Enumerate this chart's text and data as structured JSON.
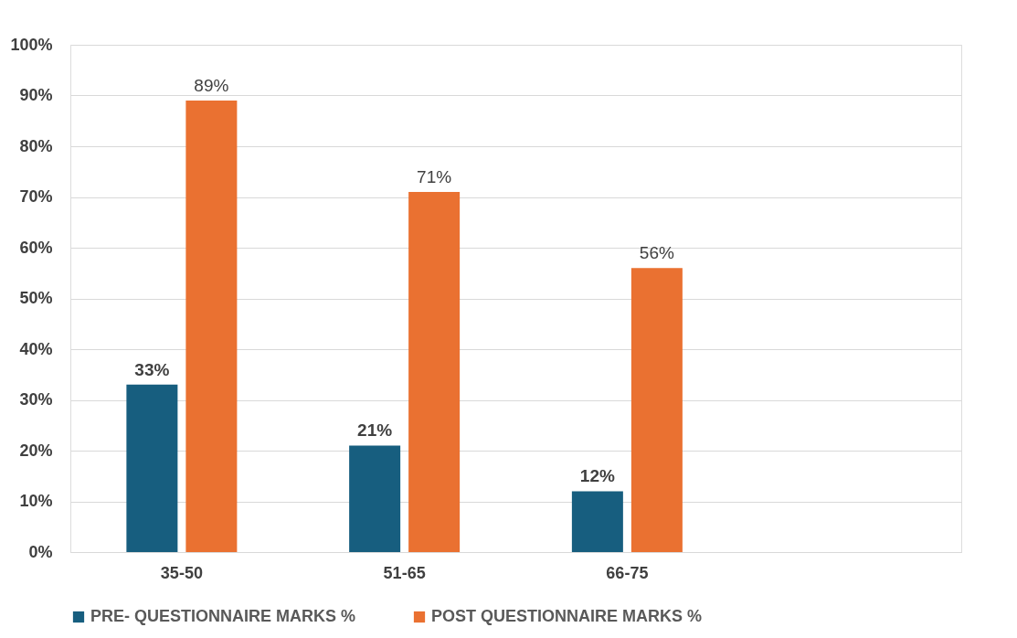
{
  "chart_data": {
    "type": "bar",
    "categories": [
      "35-50",
      "51-65",
      "66-75",
      null
    ],
    "series": [
      {
        "name": "PRE- QUESTIONNAIRE MARKS %",
        "color": "#175e7f",
        "values": [
          33,
          21,
          12,
          null
        ],
        "value_labels": [
          "33%",
          "21%",
          "12%",
          null
        ]
      },
      {
        "name": "POST QUESTIONNAIRE MARKS %",
        "color": "#ea7131",
        "values": [
          89,
          71,
          56,
          null
        ],
        "value_labels": [
          "89%",
          "71%",
          "56%",
          null
        ]
      }
    ],
    "ylim": [
      0,
      100
    ],
    "yticks": [
      {
        "value": 0,
        "label": "0%"
      },
      {
        "value": 10,
        "label": "10%"
      },
      {
        "value": 20,
        "label": "20%"
      },
      {
        "value": 30,
        "label": "30%"
      },
      {
        "value": 40,
        "label": "40%"
      },
      {
        "value": 50,
        "label": "50%"
      },
      {
        "value": 60,
        "label": "60%"
      },
      {
        "value": 70,
        "label": "70%"
      },
      {
        "value": 80,
        "label": "80%"
      },
      {
        "value": 90,
        "label": "90%"
      },
      {
        "value": 100,
        "label": "100%"
      }
    ],
    "grid": "y",
    "legend": "bottom"
  }
}
